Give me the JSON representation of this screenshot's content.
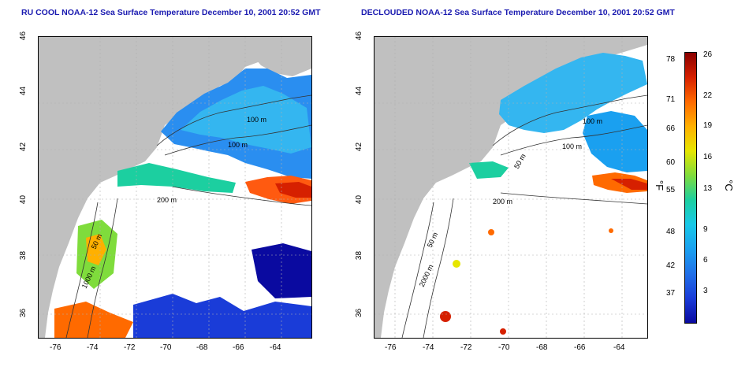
{
  "left_panel": {
    "title": "RU COOL NOAA-12 Sea Surface Temperature December 10, 2001 20:52 GMT",
    "contour_labels": [
      "100 m",
      "100 m",
      "200 m",
      "50 m",
      "1000 m"
    ]
  },
  "right_panel": {
    "title": "DECLOUDED NOAA-12 Sea Surface Temperature December 10, 2001 20:52 GMT",
    "contour_labels": [
      "100 m",
      "100 m",
      "50 m",
      "200 m",
      "50 m",
      "2000 m"
    ]
  },
  "axes": {
    "lat_ticks": [
      "46",
      "44",
      "42",
      "40",
      "38",
      "36"
    ],
    "lon_ticks": [
      "-76",
      "-74",
      "-72",
      "-70",
      "-68",
      "-66",
      "-64"
    ]
  },
  "colorbar": {
    "fahrenheit_ticks": [
      "78",
      "71",
      "66",
      "60",
      "55",
      "48",
      "42",
      "37"
    ],
    "celsius_ticks": [
      "26",
      "22",
      "19",
      "16",
      "13",
      "9",
      "6",
      "3"
    ],
    "fahrenheit_unit": "°F",
    "celsius_unit": "°C",
    "colors": [
      "#8a0000",
      "#d62000",
      "#ff6a00",
      "#ffb000",
      "#e6e600",
      "#7fdc3c",
      "#1ccfa0",
      "#18c8e8",
      "#1aa0f0",
      "#2070e8",
      "#1a3cd8",
      "#0a0aa0"
    ]
  },
  "colors": {
    "land": "#c0c0c0",
    "cloud": "#ffffff",
    "cold": "#2a6fe0",
    "cool": "#34b6f0",
    "warm": "#ff5a10",
    "title": "#1a1ab0",
    "contour": "#333333",
    "grid": "#b0b0b0"
  }
}
